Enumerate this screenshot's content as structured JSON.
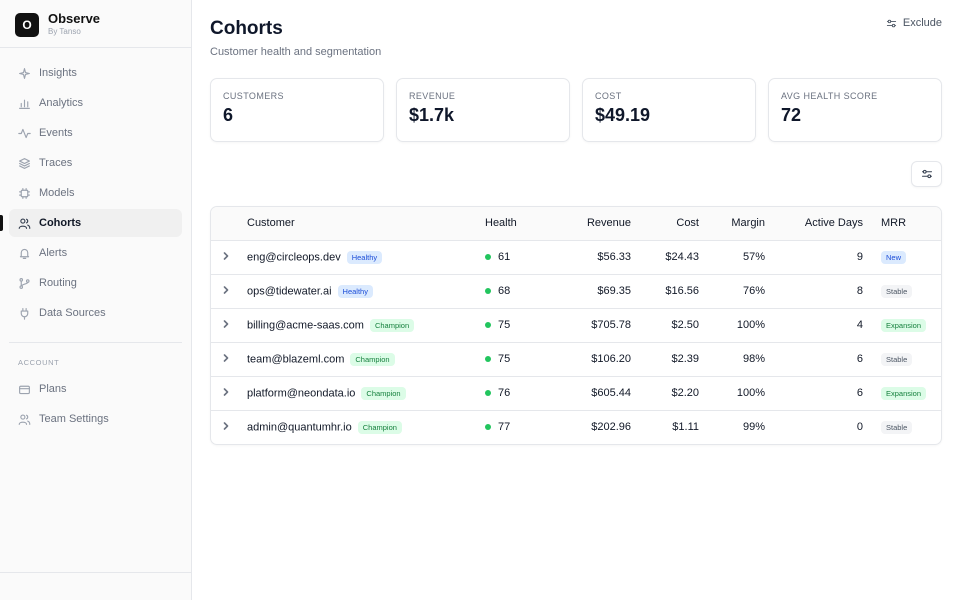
{
  "app": {
    "logo_letter": "O",
    "name": "Observe",
    "subtitle": "By Tanso"
  },
  "sidebar": {
    "items": [
      {
        "label": "Insights",
        "icon": "sparkle-icon",
        "active": false
      },
      {
        "label": "Analytics",
        "icon": "bar-chart-icon",
        "active": false
      },
      {
        "label": "Events",
        "icon": "activity-icon",
        "active": false
      },
      {
        "label": "Traces",
        "icon": "layers-icon",
        "active": false
      },
      {
        "label": "Models",
        "icon": "cpu-icon",
        "active": false
      },
      {
        "label": "Cohorts",
        "icon": "users-icon",
        "active": true
      },
      {
        "label": "Alerts",
        "icon": "bell-icon",
        "active": false
      },
      {
        "label": "Routing",
        "icon": "git-branch-icon",
        "active": false
      },
      {
        "label": "Data Sources",
        "icon": "plug-icon",
        "active": false
      }
    ],
    "account_label": "ACCOUNT",
    "account_items": [
      {
        "label": "Plans",
        "icon": "credit-card-icon"
      },
      {
        "label": "Team Settings",
        "icon": "team-icon"
      }
    ]
  },
  "header": {
    "title": "Cohorts",
    "subtitle": "Customer health and segmentation",
    "exclude_label": "Exclude"
  },
  "stats": [
    {
      "label": "CUSTOMERS",
      "value": "6"
    },
    {
      "label": "REVENUE",
      "value": "$1.7k"
    },
    {
      "label": "COST",
      "value": "$49.19"
    },
    {
      "label": "AVG HEALTH SCORE",
      "value": "72"
    }
  ],
  "table": {
    "columns": {
      "customer": "Customer",
      "health": "Health",
      "revenue": "Revenue",
      "cost": "Cost",
      "margin": "Margin",
      "active_days": "Active Days",
      "mrr": "MRR"
    },
    "rows": [
      {
        "customer": "eng@circleops.dev",
        "segment": "Healthy",
        "health": "61",
        "revenue": "$56.33",
        "cost": "$24.43",
        "margin": "57%",
        "active_days": "9",
        "mrr": "New"
      },
      {
        "customer": "ops@tidewater.ai",
        "segment": "Healthy",
        "health": "68",
        "revenue": "$69.35",
        "cost": "$16.56",
        "margin": "76%",
        "active_days": "8",
        "mrr": "Stable"
      },
      {
        "customer": "billing@acme-saas.com",
        "segment": "Champion",
        "health": "75",
        "revenue": "$705.78",
        "cost": "$2.50",
        "margin": "100%",
        "active_days": "4",
        "mrr": "Expansion"
      },
      {
        "customer": "team@blazeml.com",
        "segment": "Champion",
        "health": "75",
        "revenue": "$106.20",
        "cost": "$2.39",
        "margin": "98%",
        "active_days": "6",
        "mrr": "Stable"
      },
      {
        "customer": "platform@neondata.io",
        "segment": "Champion",
        "health": "76",
        "revenue": "$605.44",
        "cost": "$2.20",
        "margin": "100%",
        "active_days": "6",
        "mrr": "Expansion"
      },
      {
        "customer": "admin@quantumhr.io",
        "segment": "Champion",
        "health": "77",
        "revenue": "$202.96",
        "cost": "$1.11",
        "margin": "99%",
        "active_days": "0",
        "mrr": "Stable"
      }
    ]
  },
  "colors": {
    "health_dot": "#22c55e",
    "badge_healthy_bg": "#dbeafe",
    "badge_healthy_fg": "#1d4ed8",
    "badge_champion_bg": "#dcfce7",
    "badge_champion_fg": "#15803d",
    "badge_new_bg": "#dbeafe",
    "badge_new_fg": "#1d4ed8",
    "badge_stable_bg": "#f3f4f6",
    "badge_stable_fg": "#4b5563",
    "badge_expansion_bg": "#dcfce7",
    "badge_expansion_fg": "#15803d"
  }
}
